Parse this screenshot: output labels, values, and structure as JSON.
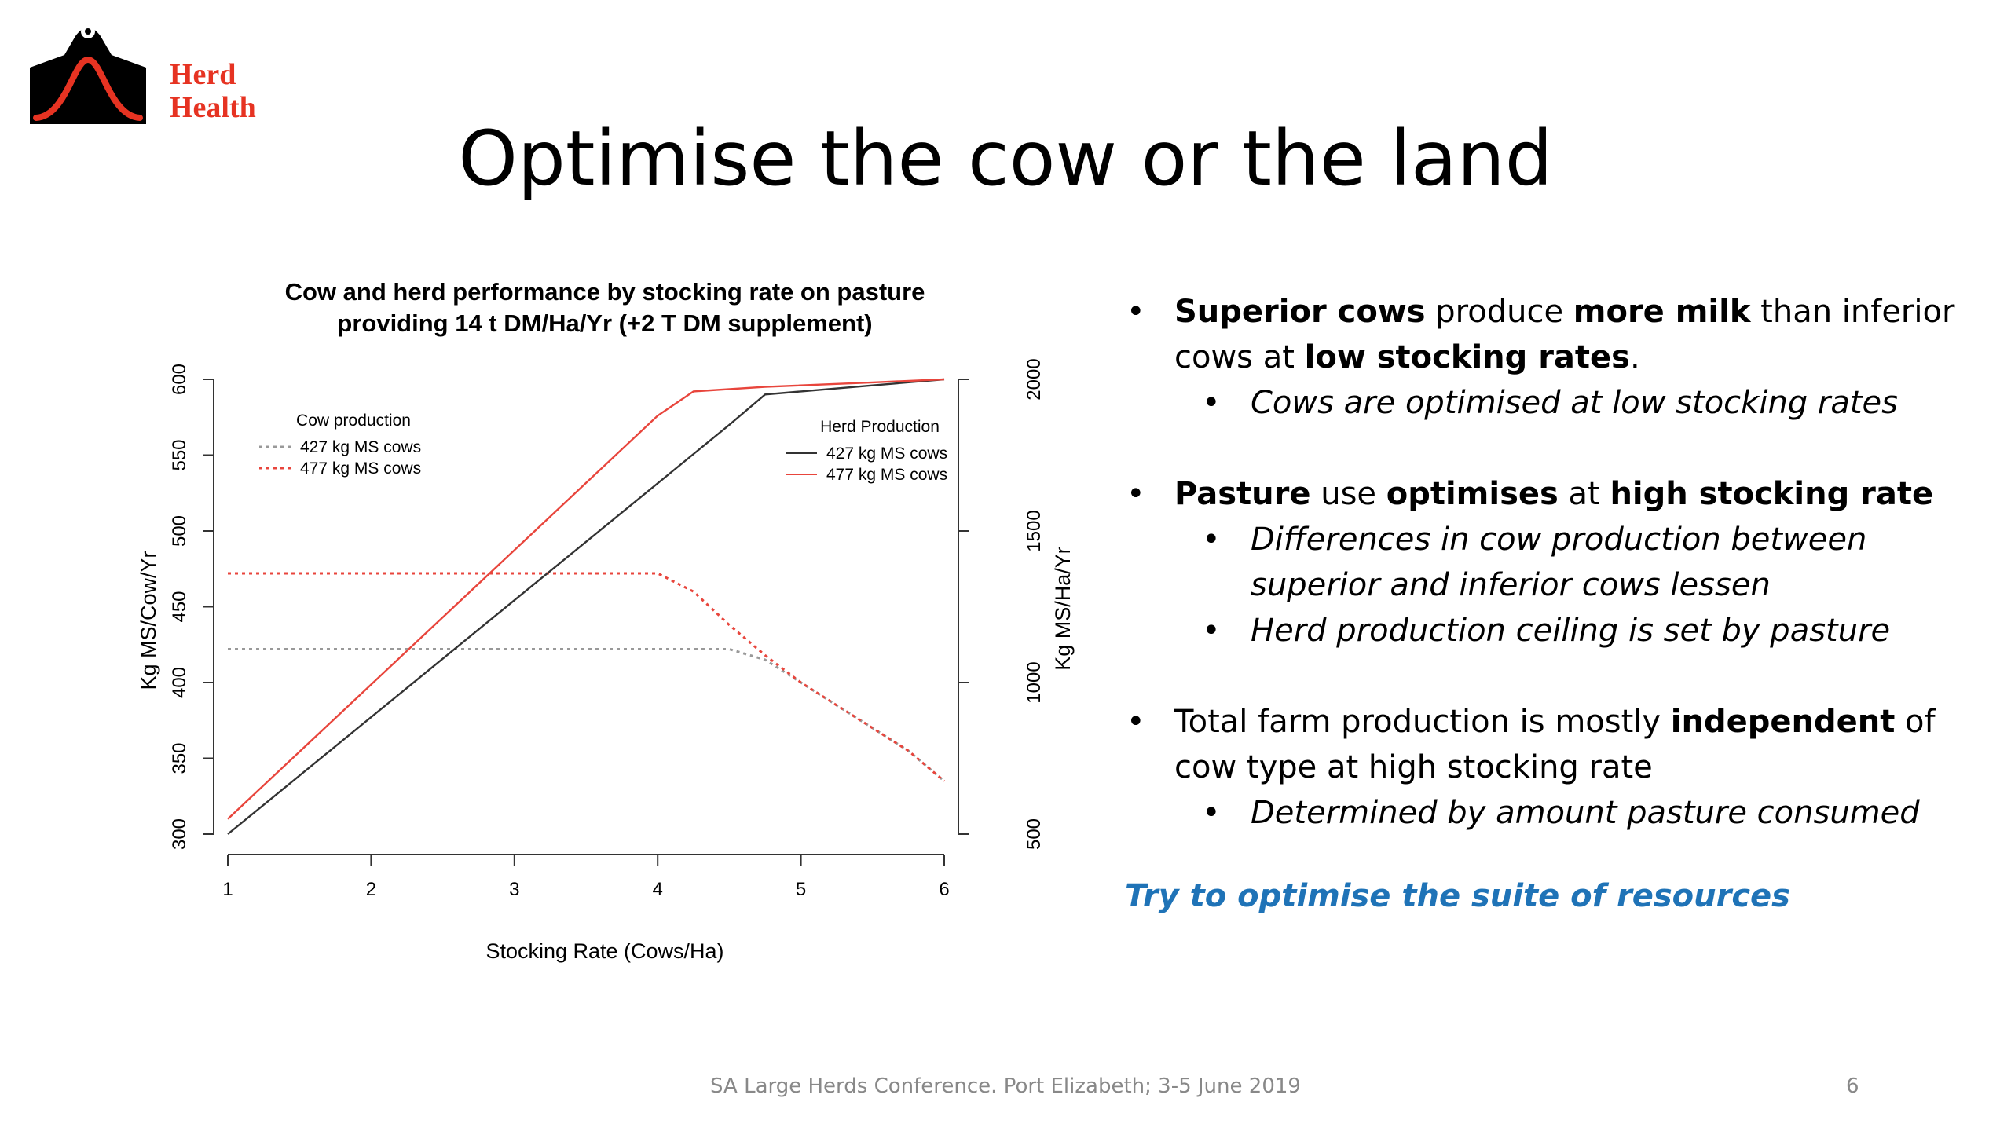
{
  "logo": {
    "line1": "Herd",
    "line2": "Health"
  },
  "slide": {
    "title": "Optimise the cow or the land",
    "footer": "SA Large Herds Conference.  Port Elizabeth; 3-5 June 2019",
    "page_number": "6",
    "tagline": "Try to optimise the suite of resources"
  },
  "bullets": [
    {
      "level": 1,
      "parts": [
        {
          "t": "Superior cows",
          "b": true
        },
        {
          "t": " produce "
        },
        {
          "t": "more milk",
          "b": true
        },
        {
          "t": " than inferior cows at "
        },
        {
          "t": "low stocking rates",
          "b": true
        },
        {
          "t": "."
        }
      ]
    },
    {
      "level": 2,
      "parts": [
        {
          "t": "Cows are optimised at low stocking rates"
        }
      ]
    },
    {
      "gap": true
    },
    {
      "level": 1,
      "parts": [
        {
          "t": "Pasture",
          "b": true
        },
        {
          "t": " use "
        },
        {
          "t": "optimises",
          "b": true
        },
        {
          "t": " at "
        },
        {
          "t": "high stocking rate",
          "b": true
        }
      ]
    },
    {
      "level": 2,
      "parts": [
        {
          "t": "Differences in cow production between superior and inferior cows lessen"
        }
      ]
    },
    {
      "level": 2,
      "parts": [
        {
          "t": "Herd production ceiling is set by pasture"
        }
      ]
    },
    {
      "gap": true
    },
    {
      "level": 1,
      "parts": [
        {
          "t": "Total farm production is mostly "
        },
        {
          "t": "independent",
          "b": true
        },
        {
          "t": " of cow type at high stocking rate"
        }
      ]
    },
    {
      "level": 2,
      "parts": [
        {
          "t": "Determined by amount pasture consumed"
        }
      ]
    }
  ],
  "colors": {
    "black_series": "#333333",
    "red_series": "#e8453c",
    "gray_series": "#999999",
    "accent": "#1f73b7",
    "logo": "#e63322"
  },
  "chart_data": {
    "type": "line",
    "title_line1": "Cow and herd performance by stocking rate on pasture",
    "title_line2": "providing 14 t DM/Ha/Yr (+2 T DM supplement)",
    "xlabel": "Stocking Rate (Cows/Ha)",
    "ylabel_left": "Kg MS/Cow/Yr",
    "ylabel_right": "Kg MS/Ha/Yr",
    "xlim": [
      1,
      6
    ],
    "ylim_left": [
      300,
      600
    ],
    "ylim_right": [
      500,
      2000
    ],
    "x_ticks": [
      "1",
      "2",
      "3",
      "4",
      "5",
      "6"
    ],
    "y_left_ticks": [
      "300",
      "350",
      "400",
      "450",
      "500",
      "550",
      "600"
    ],
    "y_right_ticks": [
      "500",
      "1000",
      "1500",
      "2000"
    ],
    "legend_cow": {
      "title": "Cow production",
      "items": [
        "427 kg MS cows",
        "477 kg MS cows"
      ],
      "placement": "top-left"
    },
    "legend_herd": {
      "title": "Herd Production",
      "items": [
        "427 kg MS cows",
        "477 kg MS cows"
      ],
      "placement": "top-right"
    },
    "series": [
      {
        "name": "427 kg MS cows",
        "group": "Cow production",
        "axis": "left",
        "style": "dotted",
        "color": "#999999",
        "points": [
          [
            1,
            422
          ],
          [
            4.5,
            422
          ],
          [
            4.75,
            415
          ],
          [
            5,
            400
          ],
          [
            5.25,
            385
          ],
          [
            5.5,
            370
          ],
          [
            5.75,
            355
          ],
          [
            6,
            335
          ]
        ]
      },
      {
        "name": "477 kg MS cows",
        "group": "Cow production",
        "axis": "left",
        "style": "dotted",
        "color": "#e8453c",
        "points": [
          [
            1,
            472
          ],
          [
            4,
            472
          ],
          [
            4.25,
            460
          ],
          [
            4.5,
            438
          ],
          [
            4.75,
            418
          ],
          [
            5,
            400
          ],
          [
            5.25,
            385
          ],
          [
            5.5,
            370
          ],
          [
            5.75,
            355
          ],
          [
            6,
            335
          ]
        ]
      },
      {
        "name": "427 kg MS cows",
        "group": "Herd Production",
        "axis": "right",
        "style": "solid",
        "color": "#333333",
        "points": [
          [
            1,
            500
          ],
          [
            4.5,
            1850
          ],
          [
            4.75,
            1950
          ],
          [
            5,
            1960
          ],
          [
            5.5,
            1980
          ],
          [
            6,
            2000
          ]
        ]
      },
      {
        "name": "477 kg MS cows",
        "group": "Herd Production",
        "axis": "right",
        "style": "solid",
        "color": "#e8453c",
        "points": [
          [
            1,
            550
          ],
          [
            4,
            1880
          ],
          [
            4.25,
            1960
          ],
          [
            4.75,
            1975
          ],
          [
            5.5,
            1990
          ],
          [
            6,
            2000
          ]
        ]
      }
    ]
  }
}
